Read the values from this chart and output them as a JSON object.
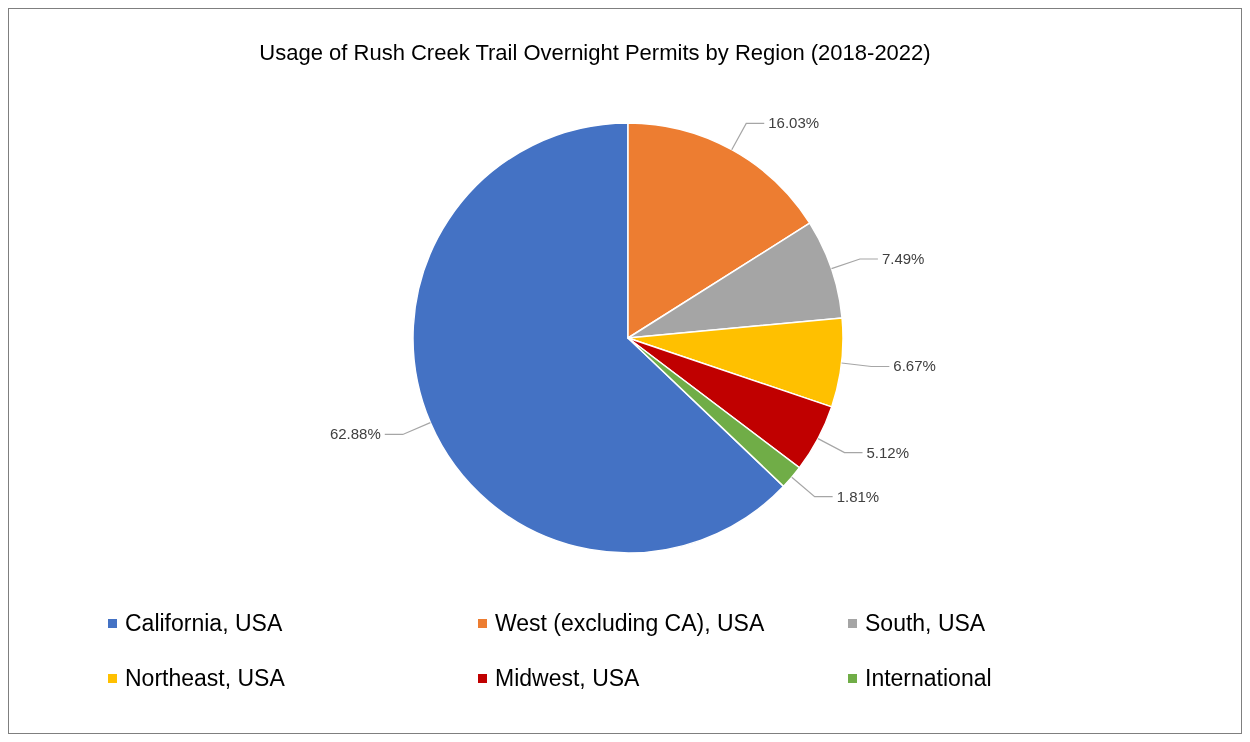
{
  "chart_data": {
    "type": "pie",
    "title": "Usage of Rush Creek Trail Overnight Permits by Region (2018-2022)",
    "categories": [
      "California, USA",
      "West (excluding CA), USA",
      "South, USA",
      "Northeast, USA",
      "Midwest, USA",
      "International"
    ],
    "values": [
      62.88,
      16.03,
      7.49,
      6.67,
      5.12,
      1.81
    ],
    "colors": [
      "#4472c4",
      "#ed7d31",
      "#a5a5a5",
      "#ffc000",
      "#c00000",
      "#70ad47"
    ],
    "value_labels": [
      "62.88%",
      "16.03%",
      "7.49%",
      "6.67%",
      "5.12%",
      "1.81%"
    ],
    "legend": "bottom"
  }
}
